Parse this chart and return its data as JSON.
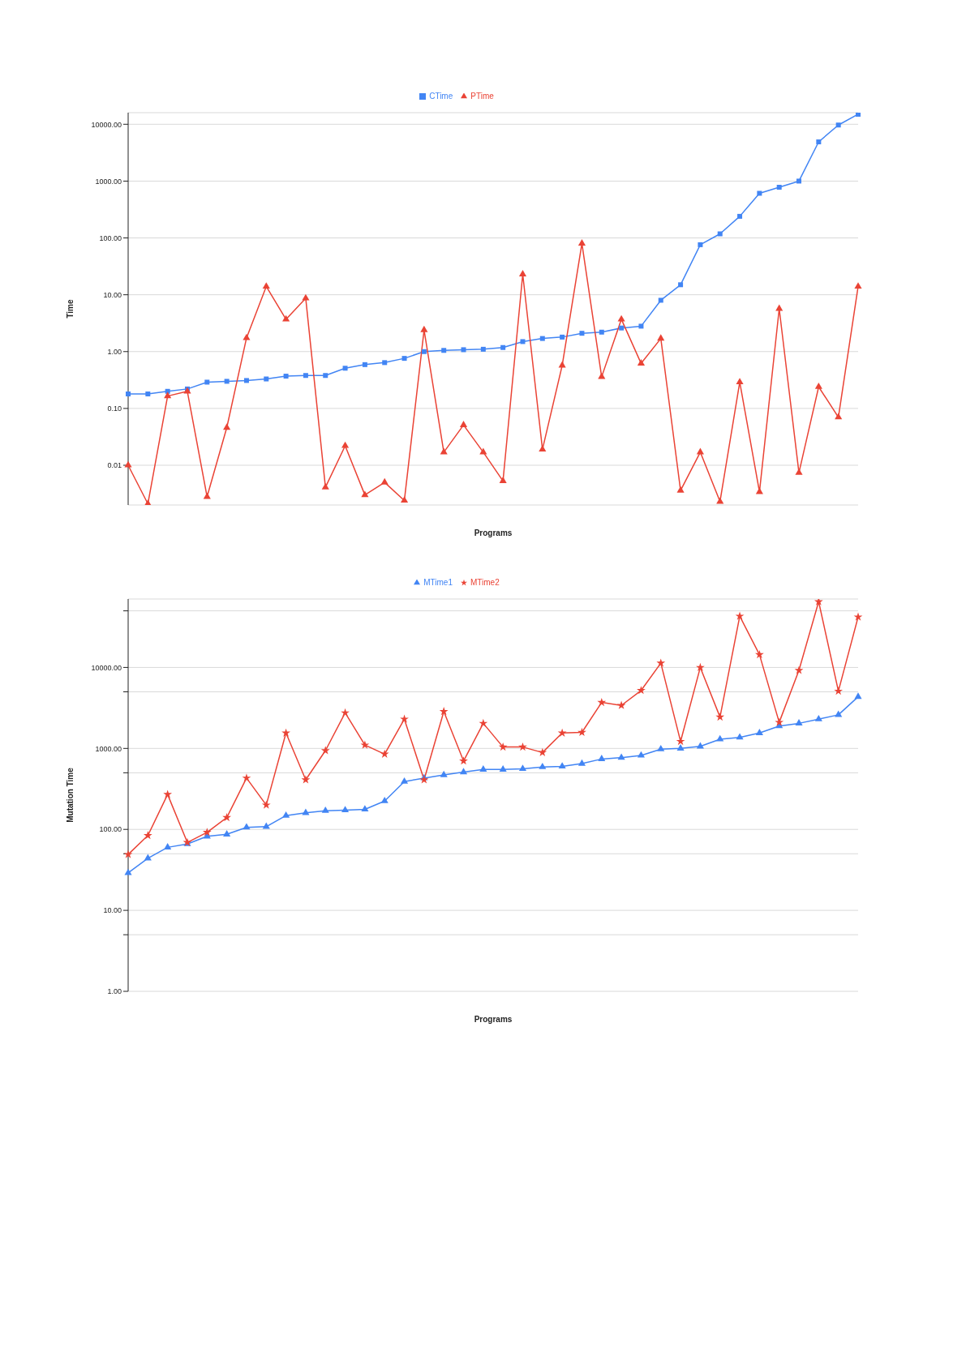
{
  "chart_data": [
    {
      "type": "line",
      "xlabel": "Programs",
      "ylabel": "Time",
      "log": "y",
      "grid": "y",
      "legend": "top",
      "tick_labels": "y",
      "line_style": "solid",
      "categories": [
        null,
        null,
        null,
        null,
        null,
        null,
        null,
        null,
        null,
        null,
        null,
        null,
        null,
        null,
        null,
        null,
        null,
        null,
        null,
        null,
        null,
        null,
        null,
        null,
        null,
        null,
        null,
        null,
        null,
        null,
        null,
        null,
        null,
        null,
        null,
        null,
        null,
        null
      ],
      "ylim": [
        0.002,
        16000
      ],
      "yticks": [
        {
          "value": 0.01,
          "label": "0.01"
        },
        {
          "value": 0.1,
          "label": "0.10"
        },
        {
          "value": 1,
          "label": "1.00"
        },
        {
          "value": 10,
          "label": "10.00"
        },
        {
          "value": 100,
          "label": "100.00"
        },
        {
          "value": 1000,
          "label": "1000.00"
        },
        {
          "value": 10000,
          "label": "10000.00"
        }
      ],
      "series": [
        {
          "name": "CTime",
          "color": "#4285f4",
          "marker": "square",
          "values": [
            0.18,
            0.18,
            0.2,
            0.22,
            0.29,
            0.3,
            0.31,
            0.33,
            0.37,
            0.38,
            0.38,
            0.51,
            0.59,
            0.64,
            0.76,
            1.0,
            1.05,
            1.08,
            1.1,
            1.18,
            1.5,
            1.7,
            1.8,
            2.1,
            2.2,
            2.6,
            2.8,
            8,
            15,
            76,
            118,
            240,
            610,
            780,
            1000,
            4900,
            9700,
            15000
          ]
        },
        {
          "name": "PTime",
          "color": "#ea4335",
          "marker": "triangle",
          "values": [
            0.01,
            0.0021,
            0.165,
            0.2,
            0.0028,
            0.046,
            1.74,
            14,
            3.7,
            8.7,
            0.0041,
            0.022,
            0.003,
            0.005,
            0.0024,
            2.4,
            0.017,
            0.051,
            0.017,
            0.0053,
            23,
            0.019,
            0.57,
            80,
            0.36,
            3.7,
            0.62,
            1.7,
            0.0036,
            0.017,
            0.0023,
            0.29,
            0.0034,
            5.7,
            0.0074,
            0.24,
            0.07,
            14
          ]
        }
      ]
    },
    {
      "type": "line",
      "xlabel": "Programs",
      "ylabel": "Mutation Time",
      "log": "y",
      "grid": "y",
      "legend": "top",
      "tick_labels": "y",
      "line_style": "solid",
      "categories": [
        null,
        null,
        null,
        null,
        null,
        null,
        null,
        null,
        null,
        null,
        null,
        null,
        null,
        null,
        null,
        null,
        null,
        null,
        null,
        null,
        null,
        null,
        null,
        null,
        null,
        null,
        null,
        null,
        null,
        null,
        null,
        null,
        null,
        null,
        null,
        null,
        null,
        null
      ],
      "ylim": [
        1,
        70000
      ],
      "yticks": [
        {
          "value": 1,
          "label": "1.00"
        },
        {
          "value": 5,
          "label": null
        },
        {
          "value": 10,
          "label": "10.00"
        },
        {
          "value": 50,
          "label": null
        },
        {
          "value": 100,
          "label": "100.00"
        },
        {
          "value": 500,
          "label": null
        },
        {
          "value": 1000,
          "label": "1000.00"
        },
        {
          "value": 5000,
          "label": null
        },
        {
          "value": 10000,
          "label": "10000.00"
        },
        {
          "value": 50000,
          "label": null
        }
      ],
      "series": [
        {
          "name": "MTime1",
          "color": "#4285f4",
          "marker": "triangle",
          "values": [
            29,
            44,
            60,
            66,
            82,
            87,
            106,
            108,
            148,
            160,
            170,
            173,
            177,
            224,
            390,
            430,
            470,
            510,
            550,
            550,
            560,
            590,
            600,
            650,
            740,
            770,
            820,
            980,
            1000,
            1060,
            1300,
            1370,
            1550,
            1890,
            2040,
            2300,
            2600,
            4340
          ]
        },
        {
          "name": "MTime2",
          "color": "#ea4335",
          "marker": "star",
          "values": [
            49,
            84,
            270,
            69,
            92,
            140,
            430,
            200,
            1550,
            410,
            940,
            2750,
            1100,
            850,
            2300,
            410,
            2860,
            700,
            2040,
            1040,
            1040,
            890,
            1550,
            1580,
            3700,
            3400,
            5200,
            11300,
            1220,
            10000,
            2440,
            43000,
            14400,
            2100,
            9200,
            65000,
            5100,
            42000
          ]
        }
      ]
    }
  ]
}
